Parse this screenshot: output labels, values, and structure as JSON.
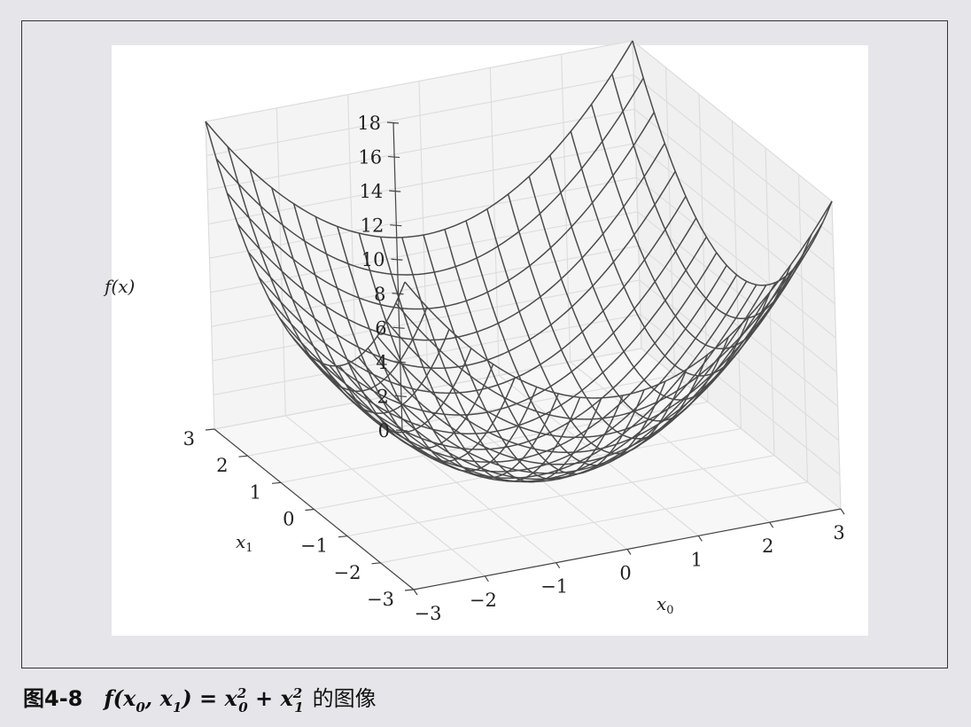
{
  "caption": {
    "figure_number": "图4-8",
    "formula_lhs": "f(x",
    "formula_lhs_sub0": "0",
    "formula_sep": ", x",
    "formula_lhs_sub1": "1",
    "formula_eq": ") = x",
    "formula_sup0": "2",
    "formula_sub0": "0",
    "formula_plus": " + x",
    "formula_sup1": "2",
    "formula_sub1": "1",
    "suffix": "的图像"
  },
  "chart_data": {
    "type": "surface",
    "function": "x0^2 + x1^2",
    "x0": {
      "label_base": "x",
      "label_sub": "0",
      "range": [
        -3,
        3
      ],
      "ticks": [
        "−3",
        "−2",
        "−1",
        "0",
        "1",
        "2",
        "3"
      ]
    },
    "x1": {
      "label_base": "x",
      "label_sub": "1",
      "range": [
        -3,
        3
      ],
      "ticks": [
        "−3",
        "−2",
        "−1",
        "0",
        "1",
        "2",
        "3"
      ]
    },
    "z": {
      "label": "f(x)",
      "range": [
        0,
        18
      ],
      "ticks": [
        "0",
        "2",
        "4",
        "6",
        "8",
        "10",
        "12",
        "14",
        "16",
        "18"
      ]
    },
    "grid": true,
    "wire_color": "#4b4b4b"
  }
}
